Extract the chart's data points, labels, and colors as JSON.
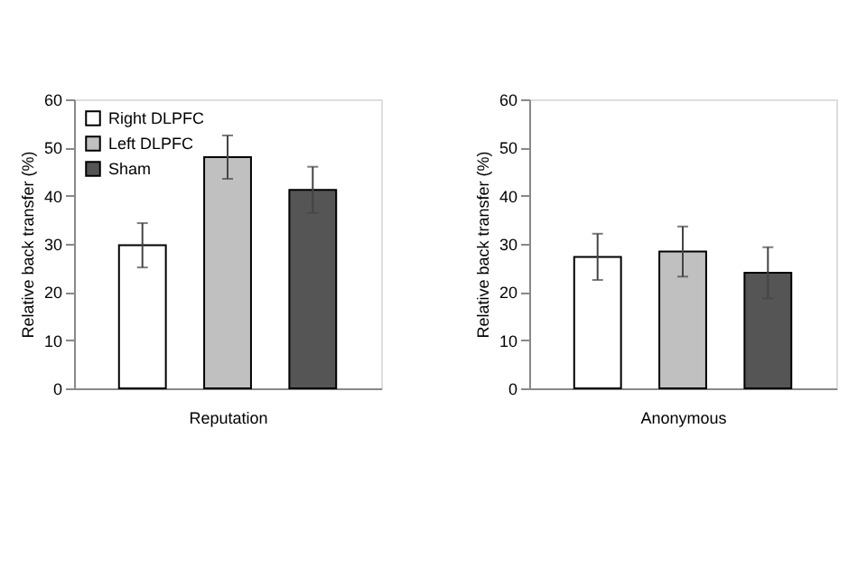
{
  "chart_data": [
    {
      "type": "bar",
      "xlabel": "Reputation",
      "ylabel": "Relative back transfer (%)",
      "categories": [
        null
      ],
      "ylim": [
        0,
        60
      ],
      "yticks": [
        0,
        10,
        20,
        30,
        40,
        50,
        60
      ],
      "grid": false,
      "legend": "top left",
      "tick_labels": "y",
      "series": [
        {
          "name": "Right DLPFC",
          "color": "#ffffff",
          "values": [
            29.7
          ],
          "errors": [
            4.6
          ]
        },
        {
          "name": "Left DLPFC",
          "color": "#c0c0c0",
          "values": [
            48.0
          ],
          "errors": [
            4.5
          ]
        },
        {
          "name": "Sham",
          "color": "#555555",
          "values": [
            41.2
          ],
          "errors": [
            4.8
          ]
        }
      ]
    },
    {
      "type": "bar",
      "xlabel": "Anonymous",
      "ylabel": "Relative back transfer (%)",
      "categories": [
        null
      ],
      "ylim": [
        0,
        60
      ],
      "yticks": [
        0,
        10,
        20,
        30,
        40,
        50,
        60
      ],
      "grid": false,
      "legend": "top left",
      "tick_labels": "y",
      "series": [
        {
          "name": "Right DLPFC",
          "color": "#ffffff",
          "values": [
            27.3
          ],
          "errors": [
            4.8
          ]
        },
        {
          "name": "Left DLPFC",
          "color": "#c0c0c0",
          "values": [
            28.4
          ],
          "errors": [
            5.2
          ]
        },
        {
          "name": "Sham",
          "color": "#555555",
          "values": [
            24.0
          ],
          "errors": [
            5.3
          ]
        }
      ]
    }
  ]
}
